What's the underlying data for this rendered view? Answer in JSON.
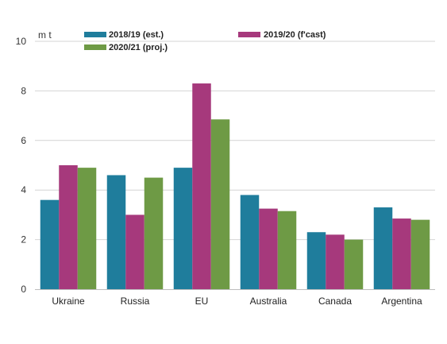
{
  "chart_data": {
    "type": "bar",
    "unit_label": "m t",
    "categories": [
      "Ukraine",
      "Russia",
      "EU",
      "Australia",
      "Canada",
      "Argentina"
    ],
    "series": [
      {
        "name": "2018/19 (est.)",
        "color": "#1f7d9c",
        "values": [
          3.6,
          4.6,
          4.9,
          3.8,
          2.3,
          3.3
        ]
      },
      {
        "name": "2019/20 (f'cast)",
        "color": "#a6397c",
        "values": [
          5.0,
          3.0,
          8.3,
          3.25,
          2.2,
          2.85
        ]
      },
      {
        "name": "2020/21 (proj.)",
        "color": "#6e9a45",
        "values": [
          4.9,
          4.5,
          6.85,
          3.15,
          2.0,
          2.8
        ]
      }
    ],
    "yticks": [
      0,
      2,
      4,
      6,
      8,
      10
    ],
    "ylim": [
      0,
      10
    ],
    "grid": true,
    "legend_position": "top"
  }
}
